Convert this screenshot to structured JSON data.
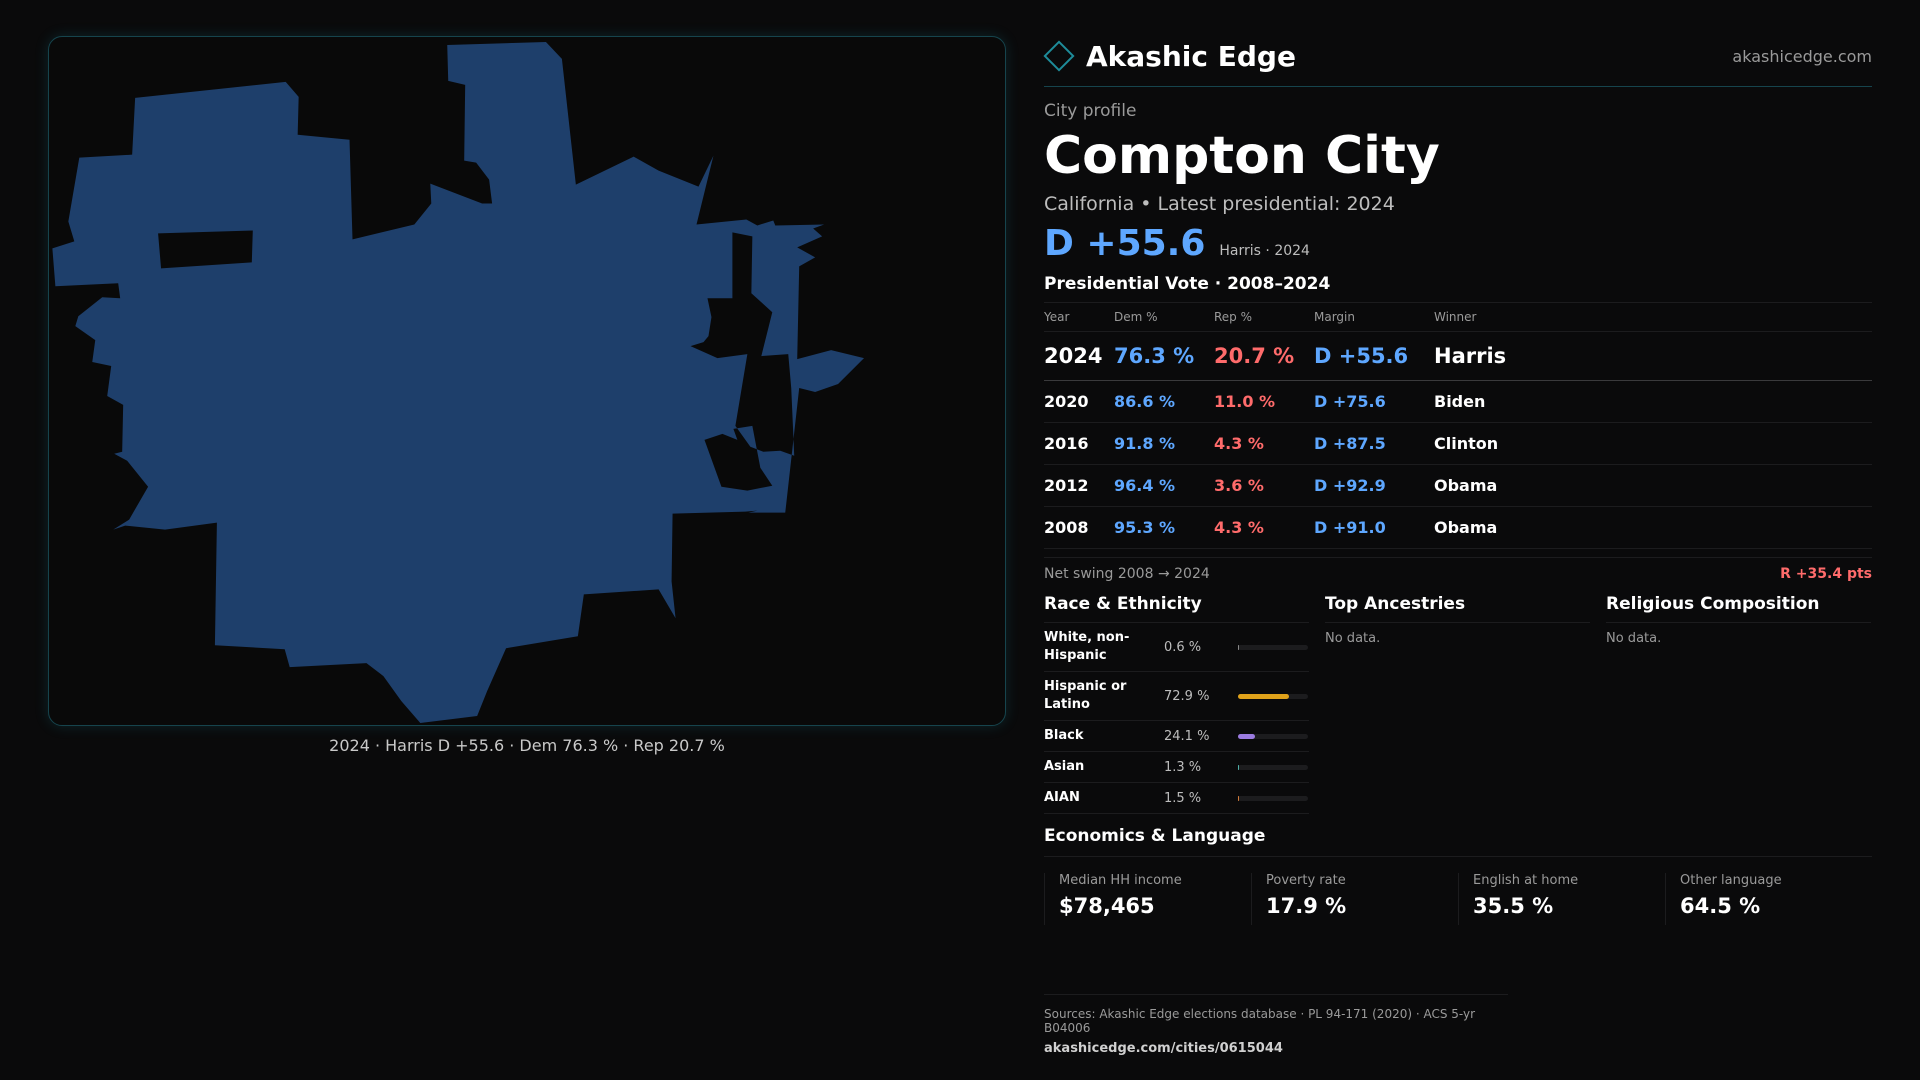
{
  "map": {
    "caption": "2024 · Harris D +55.6 · Dem 76.3 % · Rep 20.7 %",
    "fill_color": "#1e3f6b",
    "border_color": "#16444d"
  },
  "brand": {
    "name": "Akashic Edge",
    "url": "akashicedge.com",
    "icon": "diamond-icon",
    "accent": "#1e8c9a"
  },
  "profile": {
    "eyebrow": "City profile",
    "city": "Compton City",
    "subtitle": "California • Latest presidential: 2024",
    "headline_margin": "D +55.6",
    "headline_note": "Harris · 2024"
  },
  "votes": {
    "title": "Presidential Vote · 2008–2024",
    "headers": [
      "Year",
      "Dem %",
      "Rep %",
      "Margin",
      "Winner"
    ],
    "rows": [
      [
        "2024",
        "76.3 %",
        "20.7 %",
        "D +55.6",
        "Harris"
      ],
      [
        "2020",
        "86.6 %",
        "11.0 %",
        "D +75.6",
        "Biden"
      ],
      [
        "2016",
        "91.8 %",
        "4.3 %",
        "D +87.5",
        "Clinton"
      ],
      [
        "2012",
        "96.4 %",
        "3.6 %",
        "D +92.9",
        "Obama"
      ],
      [
        "2008",
        "95.3 %",
        "4.3 %",
        "D +91.0",
        "Obama"
      ]
    ],
    "swing_label": "Net swing 2008 → 2024",
    "swing_value": "R +35.4 pts"
  },
  "race": {
    "title": "Race & Ethnicity",
    "items": [
      {
        "label": "White, non-Hispanic",
        "value": "0.6 %",
        "share": 0.006,
        "color": "#888888"
      },
      {
        "label": "Hispanic or Latino",
        "value": "72.9 %",
        "share": 0.729,
        "color": "#e0a21a"
      },
      {
        "label": "Black",
        "value": "24.1 %",
        "share": 0.241,
        "color": "#9b7be0"
      },
      {
        "label": "Asian",
        "value": "1.3 %",
        "share": 0.013,
        "color": "#4fb0a8"
      },
      {
        "label": "AIAN",
        "value": "1.5 %",
        "share": 0.015,
        "color": "#d07a3a"
      }
    ]
  },
  "ancestries": {
    "title": "Top Ancestries",
    "empty": "No data."
  },
  "religion": {
    "title": "Religious Composition",
    "empty": "No data."
  },
  "economics": {
    "title": "Economics & Language",
    "items": [
      {
        "label": "Median HH income",
        "value": "$78,465"
      },
      {
        "label": "Poverty rate",
        "value": "17.9 %"
      },
      {
        "label": "English at home",
        "value": "35.5 %"
      },
      {
        "label": "Other language",
        "value": "64.5 %"
      }
    ]
  },
  "footer": {
    "sources": "Sources: Akashic Edge elections database · PL 94-171 (2020) · ACS 5-yr B04006",
    "url": "akashicedge.com/cities/0615044"
  },
  "colors": {
    "dem": "#5ea7ff",
    "rep": "#ff6b6b",
    "background": "#0a0a0b"
  }
}
